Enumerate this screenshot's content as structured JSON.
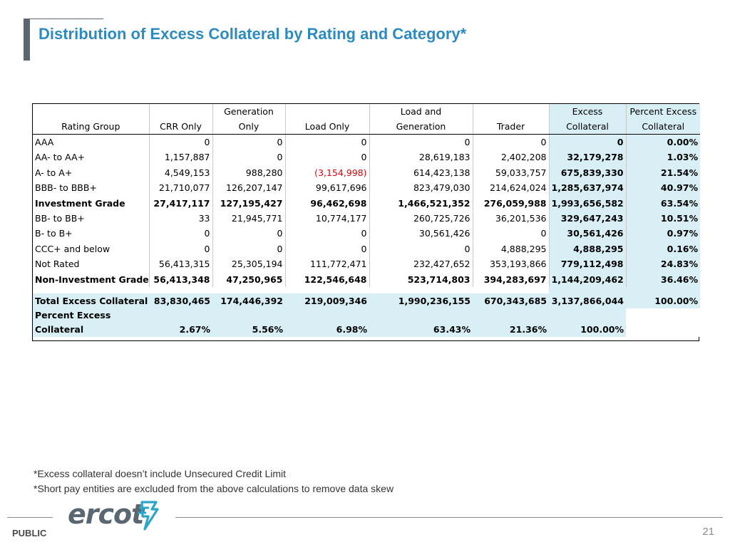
{
  "slide": {
    "title": "Distribution of Excess Collateral by Rating and Category*",
    "page_number": "21",
    "classification": "PUBLIC",
    "logo_text": "ercot",
    "footnotes": [
      "*Excess collateral doesn’t include Unsecured Credit Limit",
      "*Short pay entities are excluded from the above calculations to remove data skew"
    ]
  },
  "table": {
    "header_top": [
      "",
      "",
      "Generation",
      "",
      "Load and",
      "",
      "Excess",
      "Percent Excess"
    ],
    "header_bottom": [
      "Rating Group",
      "CRR Only",
      "Only",
      "Load Only",
      "Generation",
      "Trader",
      "Collateral",
      "Collateral"
    ],
    "rows": [
      [
        "AAA",
        "0",
        "0",
        "0",
        "0",
        "0",
        "0",
        "0.00%"
      ],
      [
        "AA- to AA+",
        "1,157,887",
        "0",
        "0",
        "28,619,183",
        "2,402,208",
        "32,179,278",
        "1.03%"
      ],
      [
        "A- to A+",
        "4,549,153",
        "988,280",
        "(3,154,998)",
        "614,423,138",
        "59,033,757",
        "675,839,330",
        "21.54%"
      ],
      [
        "BBB- to BBB+",
        "21,710,077",
        "126,207,147",
        "99,617,696",
        "823,479,030",
        "214,624,024",
        "1,285,637,974",
        "40.97%"
      ],
      [
        "Investment Grade",
        "27,417,117",
        "127,195,427",
        "96,462,698",
        "1,466,521,352",
        "276,059,988",
        "1,993,656,582",
        "63.54%"
      ],
      [
        "BB- to BB+",
        "33",
        "21,945,771",
        "10,774,177",
        "260,725,726",
        "36,201,536",
        "329,647,243",
        "10.51%"
      ],
      [
        "B- to B+",
        "0",
        "0",
        "0",
        "30,561,426",
        "0",
        "30,561,426",
        "0.97%"
      ],
      [
        "CCC+ and below",
        "0",
        "0",
        "0",
        "0",
        "4,888,295",
        "4,888,295",
        "0.16%"
      ],
      [
        "Not Rated",
        "56,413,315",
        "25,305,194",
        "111,772,471",
        "232,427,652",
        "353,193,866",
        "779,112,498",
        "24.83%"
      ],
      [
        "Non-Investment Grade",
        "56,413,348",
        "47,250,965",
        "122,546,648",
        "523,714,803",
        "394,283,697",
        "1,144,209,462",
        "36.46%"
      ]
    ],
    "total_row": [
      "Total Excess Collateral",
      "83,830,465",
      "174,446,392",
      "219,009,346",
      "1,990,236,155",
      "670,343,685",
      "3,137,866,044",
      "100.00%"
    ],
    "percent_label_line1": "Percent Excess",
    "percent_label_line2": "Collateral",
    "percent_row": [
      "2.67%",
      "5.56%",
      "6.98%",
      "63.43%",
      "21.36%",
      "100.00%"
    ],
    "negative_color": "#e00000",
    "highlight_color": "#d9eff6"
  }
}
